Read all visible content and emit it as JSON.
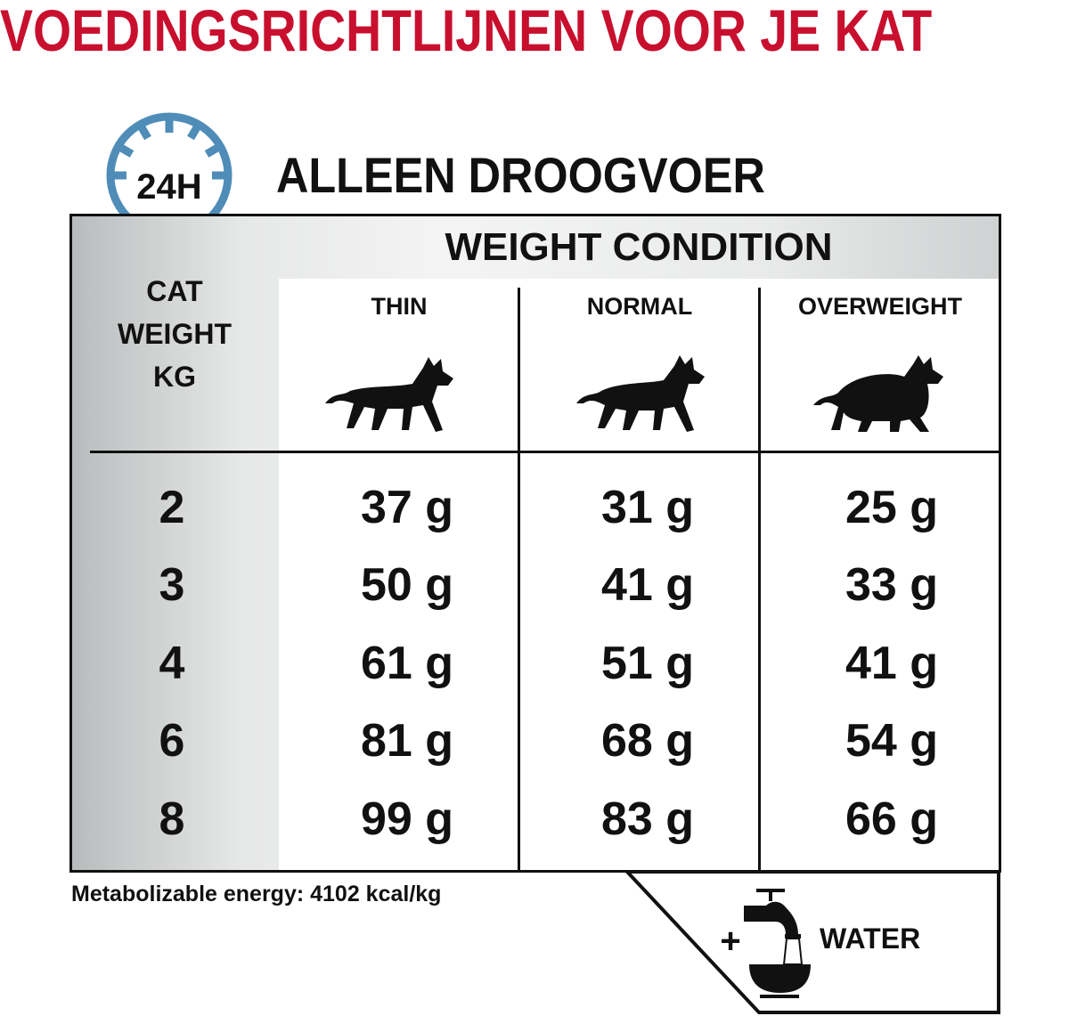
{
  "title": "VOEDINGSRICHTLIJNEN VOOR JE KAT",
  "subtitle": "ALLEEN DROOGVOER",
  "clock_badge": "24H",
  "colors": {
    "title": "#c8102e",
    "clock": "#4f8db8"
  },
  "table": {
    "header": "WEIGHT CONDITION",
    "row_header": [
      "CAT",
      "WEIGHT",
      "KG"
    ],
    "columns": [
      {
        "label": "THIN",
        "icon": "thin-cat-icon"
      },
      {
        "label": "NORMAL",
        "icon": "normal-cat-icon"
      },
      {
        "label": "OVERWEIGHT",
        "icon": "overweight-cat-icon"
      }
    ],
    "rows": [
      {
        "weight": "2",
        "values": [
          "37 g",
          "31 g",
          "25 g"
        ]
      },
      {
        "weight": "3",
        "values": [
          "50 g",
          "41 g",
          "33 g"
        ]
      },
      {
        "weight": "4",
        "values": [
          "61 g",
          "51 g",
          "41 g"
        ]
      },
      {
        "weight": "6",
        "values": [
          "81 g",
          "68 g",
          "54 g"
        ]
      },
      {
        "weight": "8",
        "values": [
          "99 g",
          "83 g",
          "66 g"
        ]
      }
    ]
  },
  "footnote": "Metabolizable energy: 4102 kcal/kg",
  "water": {
    "plus": "+",
    "label": "WATER",
    "icon": "water-tap-bowl-icon"
  }
}
